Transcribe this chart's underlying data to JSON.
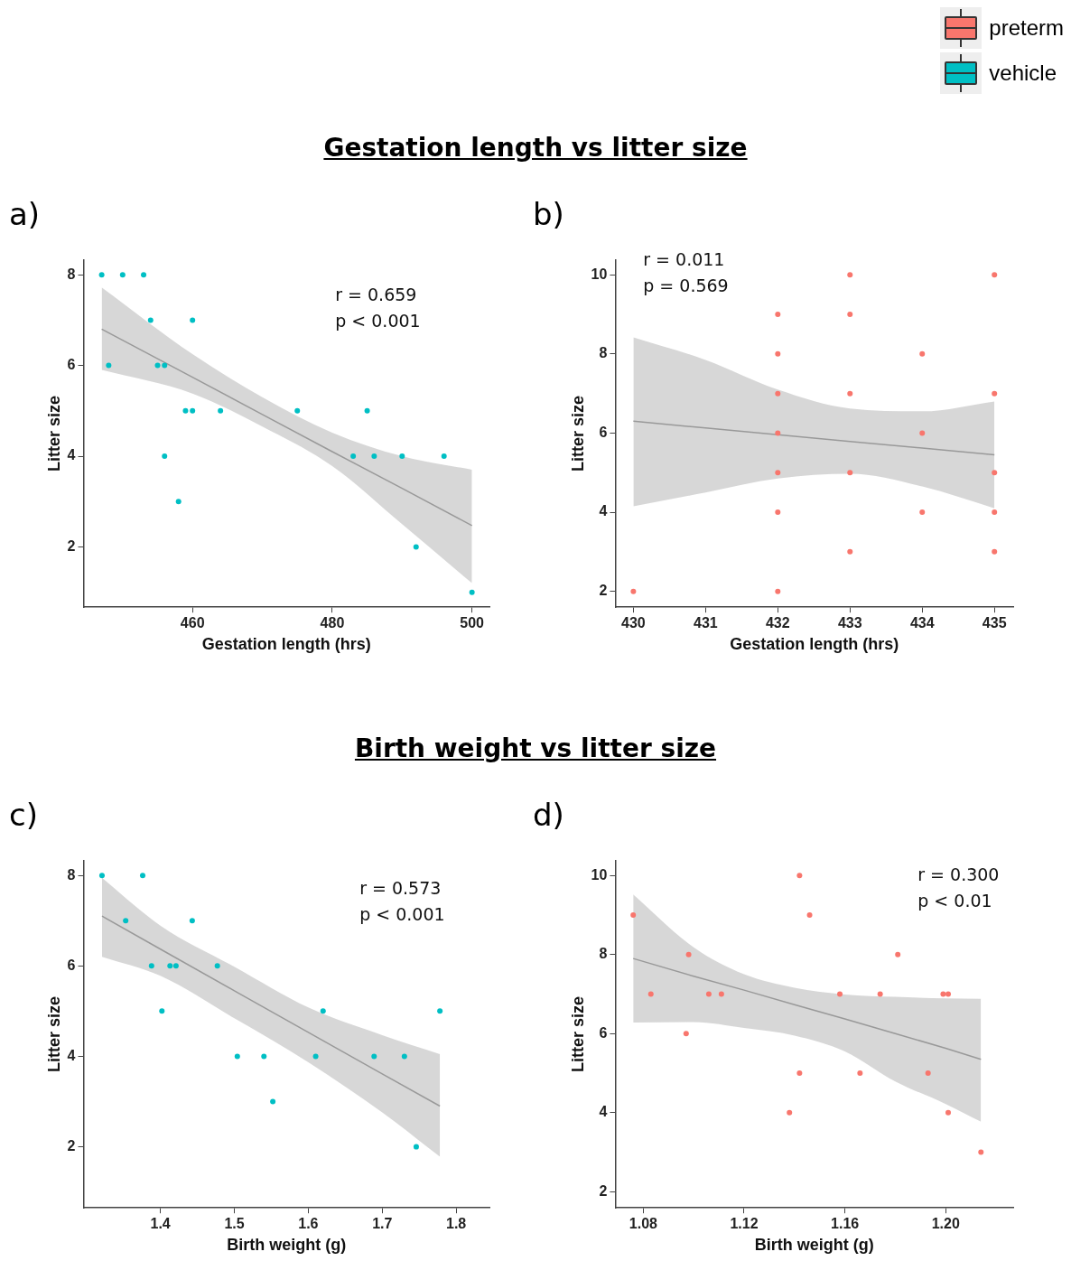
{
  "chart_data": [
    {
      "type": "scatter",
      "title": "Gestation length vs litter size",
      "subtitle": "a)",
      "xlabel": "Gestation length (hrs)",
      "ylabel": "Litter size",
      "xlim": [
        444.4,
        502.5
      ],
      "ylim": [
        0.67,
        8.33
      ],
      "xticks": [
        460,
        480,
        500
      ],
      "yticks": [
        2,
        4,
        6,
        8
      ],
      "legend": "top right",
      "annotations": [
        "r = 0.659",
        "p < 0.001"
      ],
      "series": [
        {
          "name": "vehicle",
          "marker": "circle",
          "color": "#00bfc4",
          "x": [
            447,
            450,
            453,
            454,
            460,
            448,
            455,
            456,
            459,
            460,
            464,
            475,
            485,
            456,
            483,
            486,
            490,
            496,
            458,
            492,
            500
          ],
          "values": [
            8,
            8,
            8,
            7,
            7,
            6,
            6,
            6,
            5,
            5,
            5,
            5,
            5,
            4,
            4,
            4,
            4,
            4,
            3,
            2,
            1
          ]
        },
        {
          "type": "line",
          "marker": "none",
          "color": "#999999",
          "line_style": "solid",
          "x": [
            447,
            460,
            470,
            480,
            490,
            500
          ],
          "values": [
            6.8,
            5.74,
            4.92,
            4.1,
            3.29,
            2.47
          ],
          "lower": [
            5.9,
            5.38,
            4.65,
            3.78,
            2.5,
            1.2
          ],
          "upper": [
            7.72,
            6.25,
            5.3,
            4.52,
            4.0,
            3.7
          ]
        }
      ]
    },
    {
      "type": "scatter",
      "subtitle": "b)",
      "xlabel": "Gestation length (hrs)",
      "ylabel": "Litter size",
      "xlim": [
        429.75,
        435.26
      ],
      "ylim": [
        1.6,
        10.38
      ],
      "xticks": [
        430,
        431,
        432,
        433,
        434,
        435
      ],
      "yticks": [
        2,
        4,
        6,
        8,
        10
      ],
      "legend": "top right",
      "annotations": [
        "r = 0.011",
        "p = 0.569"
      ],
      "series": [
        {
          "name": "preterm",
          "marker": "circle",
          "color": "#f8766d",
          "x": [
            430,
            432,
            432,
            432,
            432,
            432,
            432,
            432,
            433,
            433,
            433,
            433,
            433,
            434,
            434,
            434,
            435,
            435,
            435,
            435,
            435
          ],
          "values": [
            2,
            9,
            8,
            7,
            6,
            5,
            4,
            2,
            10,
            9,
            7,
            5,
            3,
            8,
            6,
            4,
            10,
            7,
            5,
            4,
            3
          ]
        },
        {
          "type": "line",
          "marker": "none",
          "color": "#999999",
          "line_style": "solid",
          "x": [
            430,
            431,
            432,
            433,
            434,
            435
          ],
          "values": [
            6.3,
            6.13,
            5.96,
            5.79,
            5.62,
            5.45
          ],
          "lower": [
            4.15,
            4.5,
            4.85,
            4.97,
            4.65,
            4.1
          ],
          "upper": [
            8.42,
            7.85,
            7.1,
            6.62,
            6.55,
            6.8
          ]
        }
      ]
    },
    {
      "type": "scatter",
      "title": "Birth weight vs litter size",
      "subtitle": "c)",
      "xlabel": "Birth weight (g)",
      "ylabel": "Litter size",
      "xlim": [
        1.296,
        1.845
      ],
      "ylim": [
        0.65,
        8.33
      ],
      "xticks": [
        1.4,
        1.5,
        1.6,
        1.7,
        1.8
      ],
      "yticks": [
        2,
        4,
        6,
        8
      ],
      "annotations": [
        "r = 0.573",
        "p < 0.001"
      ],
      "series": [
        {
          "marker": "circle",
          "color": "#00bfc4",
          "x": [
            1.321,
            1.376,
            1.353,
            1.443,
            1.388,
            1.413,
            1.421,
            1.477,
            1.402,
            1.62,
            1.778,
            1.504,
            1.54,
            1.61,
            1.689,
            1.73,
            1.552,
            1.746
          ],
          "values": [
            8,
            8,
            7,
            7,
            6,
            6,
            6,
            6,
            5,
            5,
            5,
            4,
            4,
            4,
            4,
            4,
            3,
            2
          ]
        },
        {
          "type": "line",
          "marker": "none",
          "color": "#999999",
          "line_style": "solid",
          "x": [
            1.321,
            1.4,
            1.5,
            1.6,
            1.7,
            1.778
          ],
          "values": [
            7.1,
            6.37,
            5.45,
            4.53,
            3.61,
            2.9
          ],
          "lower": [
            6.2,
            5.78,
            4.84,
            3.87,
            2.76,
            1.78
          ],
          "upper": [
            7.95,
            6.89,
            5.98,
            5.08,
            4.47,
            4.05
          ]
        }
      ]
    },
    {
      "type": "scatter",
      "subtitle": "d)",
      "xlabel": "Birth weight (g)",
      "ylabel": "Litter size",
      "xlim": [
        1.0689,
        1.2268
      ],
      "ylim": [
        1.59,
        10.38
      ],
      "xticks": [
        1.08,
        1.12,
        1.16,
        {
          "value": 1.2,
          "label": "1.20"
        }
      ],
      "yticks": [
        2,
        4,
        6,
        8,
        10
      ],
      "annotations": [
        "r = 0.300",
        "p < 0.01"
      ],
      "series": [
        {
          "marker": "circle",
          "color": "#f8766d",
          "x": [
            1.076,
            1.083,
            1.098,
            1.097,
            1.106,
            1.111,
            1.142,
            1.146,
            1.142,
            1.138,
            1.158,
            1.166,
            1.174,
            1.181,
            1.193,
            1.199,
            1.201,
            1.201,
            1.214
          ],
          "values": [
            9,
            7,
            8,
            6,
            7,
            7,
            10,
            9,
            5,
            4,
            7,
            5,
            7,
            8,
            5,
            7,
            7,
            4,
            3
          ]
        },
        {
          "type": "line",
          "marker": "none",
          "color": "#999999",
          "line_style": "solid",
          "x": [
            1.076,
            1.1,
            1.12,
            1.14,
            1.16,
            1.18,
            1.2,
            1.214
          ],
          "values": [
            7.9,
            7.45,
            7.1,
            6.73,
            6.37,
            6.0,
            5.63,
            5.35
          ],
          "lower": [
            6.28,
            6.29,
            6.14,
            5.95,
            5.55,
            4.79,
            4.22,
            3.77
          ],
          "upper": [
            9.52,
            8.18,
            7.5,
            7.16,
            6.99,
            6.93,
            6.89,
            6.88
          ]
        }
      ]
    }
  ]
}
